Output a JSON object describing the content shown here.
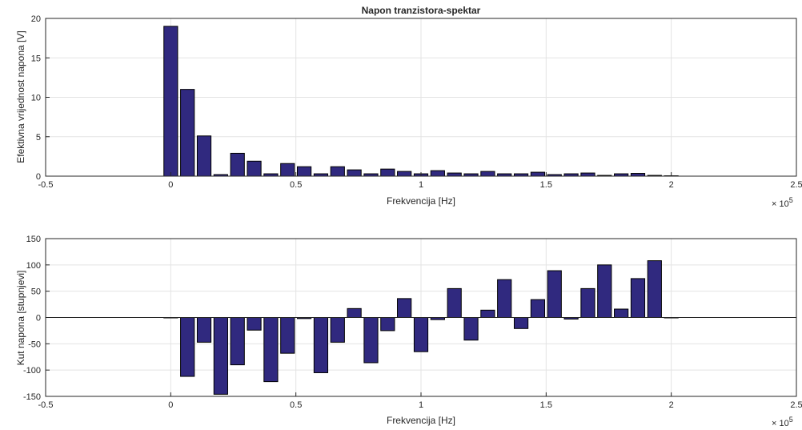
{
  "colors": {
    "bar": "#30297f",
    "grid": "#e3e3e3",
    "axis": "#262626",
    "background": "#ffffff"
  },
  "chart_data": [
    {
      "type": "bar",
      "title": "Napon tranzistora-spektar",
      "xlabel": "Frekvencija [Hz]",
      "ylabel": "Efektivna vrijednost napona [V]",
      "x_exponent_label": "× 10^5",
      "x_exponent_base": "× 10",
      "x_exponent_power": "5",
      "xlim": [
        -0.5,
        2.5
      ],
      "ylim": [
        0,
        20
      ],
      "xticks": [
        -0.5,
        0,
        0.5,
        1,
        1.5,
        2,
        2.5
      ],
      "xtick_labels": [
        "-0.5",
        "0",
        "0.5",
        "1",
        "1.5",
        "2",
        "2.5"
      ],
      "yticks": [
        0,
        5,
        10,
        15,
        20
      ],
      "ytick_labels": [
        "0",
        "5",
        "10",
        "15",
        "20"
      ],
      "grid": true,
      "bar_width": 0.055,
      "x": [
        0,
        0.0667,
        0.1333,
        0.2,
        0.2667,
        0.3333,
        0.4,
        0.4667,
        0.5333,
        0.6,
        0.6667,
        0.7333,
        0.8,
        0.8667,
        0.9333,
        1.0,
        1.0667,
        1.1333,
        1.2,
        1.2667,
        1.3333,
        1.4,
        1.4667,
        1.5333,
        1.6,
        1.6667,
        1.7333,
        1.8,
        1.8667,
        1.9333,
        2.0
      ],
      "values": [
        19.0,
        11.0,
        5.1,
        0.2,
        2.9,
        1.9,
        0.3,
        1.6,
        1.2,
        0.3,
        1.2,
        0.8,
        0.3,
        0.9,
        0.6,
        0.3,
        0.7,
        0.4,
        0.3,
        0.6,
        0.3,
        0.3,
        0.5,
        0.2,
        0.3,
        0.4,
        0.1,
        0.3,
        0.35,
        0.1,
        0.05
      ]
    },
    {
      "type": "bar",
      "title": "",
      "xlabel": "Frekvencija [Hz]",
      "ylabel": "Kut napona [stupnjevi]",
      "x_exponent_label": "× 10^5",
      "x_exponent_base": "× 10",
      "x_exponent_power": "5",
      "xlim": [
        -0.5,
        2.5
      ],
      "ylim": [
        -150,
        150
      ],
      "xticks": [
        -0.5,
        0,
        0.5,
        1,
        1.5,
        2,
        2.5
      ],
      "xtick_labels": [
        "-0.5",
        "0",
        "0.5",
        "1",
        "1.5",
        "2",
        "2.5"
      ],
      "yticks": [
        -150,
        -100,
        -50,
        0,
        50,
        100,
        150
      ],
      "ytick_labels": [
        "-150",
        "-100",
        "-50",
        "0",
        "50",
        "100",
        "150"
      ],
      "grid": true,
      "bar_width": 0.055,
      "x": [
        0,
        0.0667,
        0.1333,
        0.2,
        0.2667,
        0.3333,
        0.4,
        0.4667,
        0.5333,
        0.6,
        0.6667,
        0.7333,
        0.8,
        0.8667,
        0.9333,
        1.0,
        1.0667,
        1.1333,
        1.2,
        1.2667,
        1.3333,
        1.4,
        1.4667,
        1.5333,
        1.6,
        1.6667,
        1.7333,
        1.8,
        1.8667,
        1.9333,
        2.0
      ],
      "values": [
        0,
        -112,
        -47,
        -146,
        -90,
        -24,
        -122,
        -68,
        -2,
        -105,
        -47,
        17,
        -86,
        -25,
        36,
        -65,
        -4,
        55,
        -43,
        14,
        72,
        -21,
        34,
        89,
        -3,
        55,
        100,
        16,
        74,
        108,
        0
      ]
    }
  ]
}
